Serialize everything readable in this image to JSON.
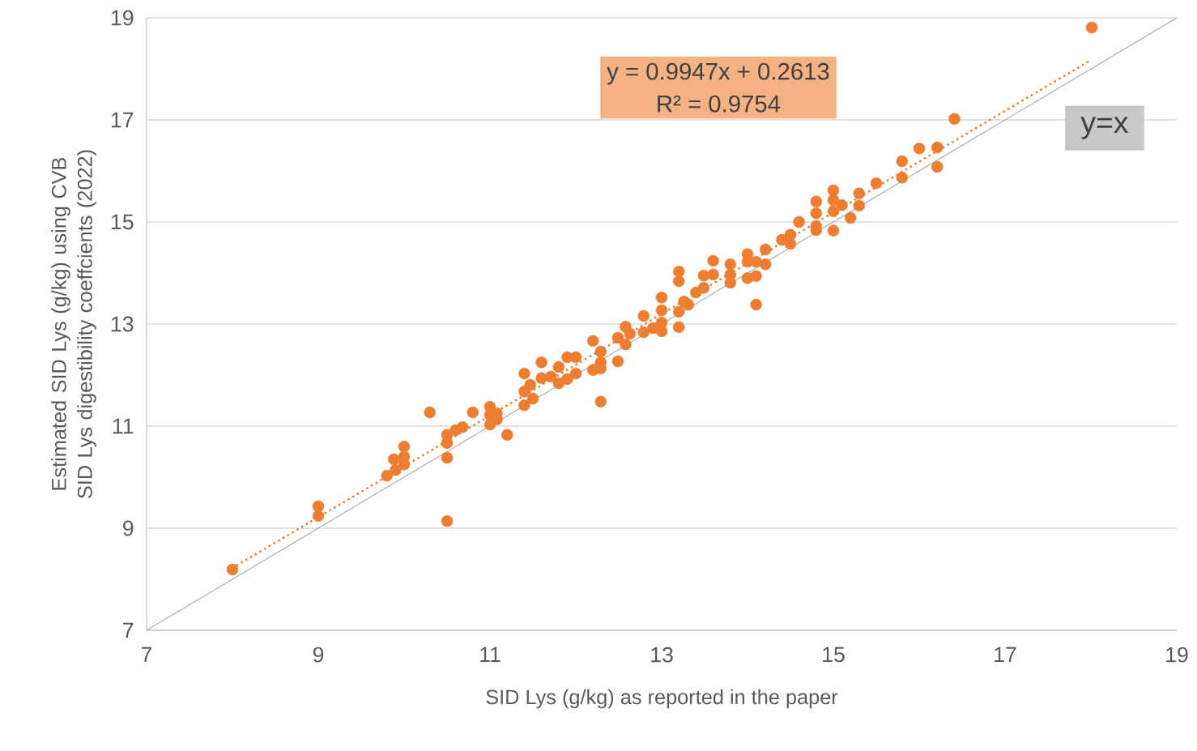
{
  "chart_data": {
    "type": "scatter",
    "xlabel": "SID Lys (g/kg) as reported in the paper",
    "ylabel": "Estimated SID Lys (g/kg) using CVB SID Lys digestibility coeffcients (2022)",
    "xlim": [
      7,
      19
    ],
    "xticks": [
      7,
      9,
      11,
      13,
      15,
      17,
      19
    ],
    "ylim": [
      7,
      19
    ],
    "yticks": [
      7,
      9,
      11,
      13,
      15,
      17,
      19
    ],
    "grid": "y",
    "annotations": [
      "y = 0.9947x + 0.2613",
      "R² = 0.9754"
    ],
    "series": [
      {
        "color": "#ed7d31",
        "marker": "circle",
        "x": [
          8.0,
          9.0,
          9.0,
          9.8,
          9.88,
          9.9,
          10.0,
          10.0,
          10.0,
          10.3,
          10.5,
          10.5,
          10.5,
          10.5,
          10.6,
          10.68,
          10.8,
          11.0,
          11.0,
          11.0,
          11.08,
          11.08,
          11.2,
          11.4,
          11.4,
          11.4,
          11.47,
          11.5,
          11.6,
          11.6,
          11.71,
          11.8,
          11.8,
          11.9,
          11.9,
          12.0,
          12.0,
          12.2,
          12.2,
          12.29,
          12.29,
          12.29,
          12.29,
          12.49,
          12.49,
          12.58,
          12.58,
          12.63,
          12.79,
          12.79,
          12.9,
          13.0,
          13.0,
          13.0,
          13.0,
          13.2,
          13.2,
          13.2,
          13.2,
          13.26,
          13.31,
          13.4,
          13.49,
          13.49,
          13.6,
          13.6,
          13.8,
          13.8,
          13.8,
          14.0,
          14.0,
          14.0,
          14.1,
          14.1,
          14.1,
          14.21,
          14.21,
          14.4,
          14.5,
          14.5,
          14.6,
          14.8,
          14.8,
          14.8,
          14.8,
          15.0,
          15.0,
          15.0,
          15.0,
          15.1,
          15.2,
          15.3,
          15.3,
          15.5,
          15.8,
          15.8,
          16.0,
          16.21,
          16.21,
          16.41,
          18.01
        ],
        "values": [
          8.19,
          9.43,
          9.24,
          10.03,
          10.35,
          10.14,
          10.6,
          10.4,
          10.25,
          11.27,
          10.83,
          10.67,
          10.38,
          9.14,
          10.92,
          10.98,
          11.27,
          11.38,
          11.22,
          11.03,
          11.25,
          11.13,
          10.83,
          12.03,
          11.68,
          11.41,
          11.81,
          11.54,
          12.25,
          11.94,
          11.97,
          11.84,
          12.16,
          12.35,
          11.92,
          12.35,
          12.03,
          12.67,
          12.1,
          12.46,
          12.25,
          12.13,
          11.48,
          12.27,
          12.73,
          12.95,
          12.6,
          12.81,
          13.16,
          12.84,
          12.92,
          13.52,
          13.27,
          12.86,
          13.03,
          14.03,
          13.84,
          12.94,
          13.24,
          13.44,
          13.38,
          13.62,
          13.95,
          13.71,
          14.24,
          13.97,
          14.17,
          13.81,
          13.97,
          14.37,
          14.22,
          13.9,
          13.38,
          13.94,
          14.22,
          14.46,
          14.17,
          14.65,
          14.75,
          14.57,
          15.0,
          15.4,
          15.17,
          14.92,
          14.84,
          15.62,
          15.43,
          15.21,
          14.83,
          15.33,
          15.08,
          15.56,
          15.32,
          15.76,
          16.19,
          15.87,
          16.44,
          16.46,
          16.08,
          17.02,
          18.81
        ]
      },
      {
        "type": "line",
        "color": "#ed7d31",
        "line_style": "dotted",
        "marker": "none",
        "x": [
          8.0,
          18.0
        ],
        "values": [
          8.22,
          18.17
        ]
      },
      {
        "type": "line",
        "color": "#a6a6a6",
        "line_style": "solid",
        "marker": "none",
        "name": "y=x",
        "x": [
          7,
          19
        ],
        "values": [
          7,
          19
        ]
      }
    ]
  }
}
